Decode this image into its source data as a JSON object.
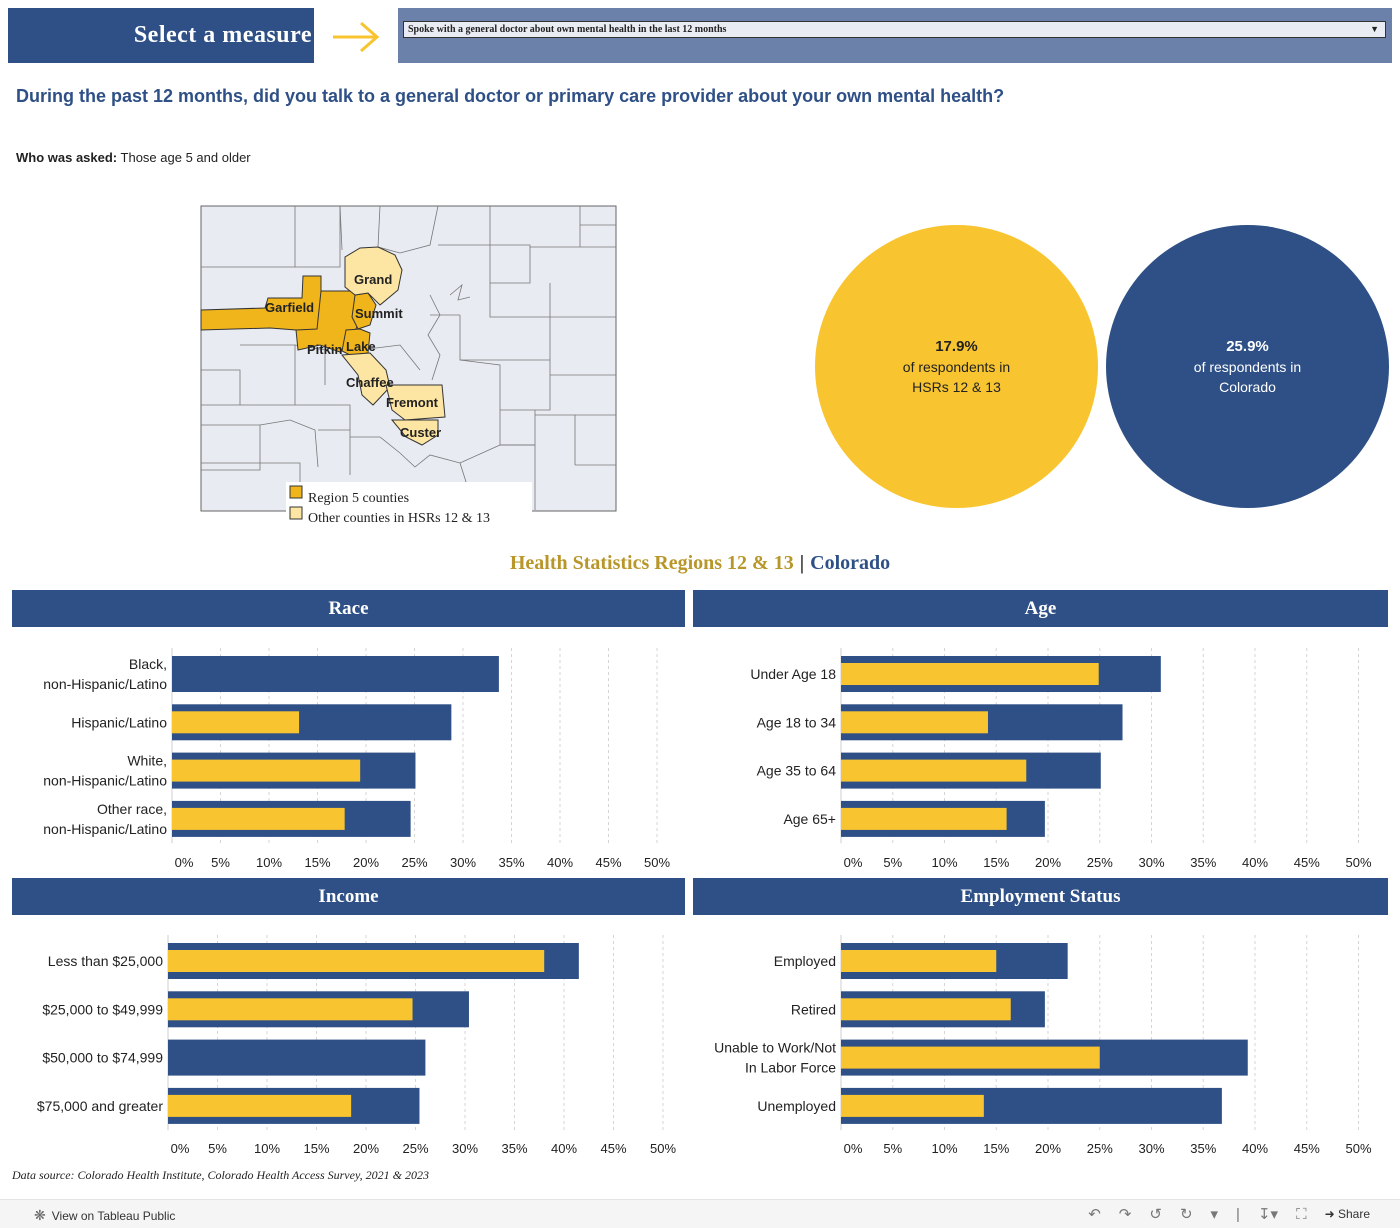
{
  "header": {
    "measure_label": "Select a measure",
    "selected_measure": "Spoke with a general doctor about own mental health in the last 12 months"
  },
  "question": "During the past 12 months, did you talk to a general doctor or primary care provider about your own mental health?",
  "who_asked": {
    "label": "Who was asked:",
    "value": "Those age 5 and older"
  },
  "map": {
    "county_labels": [
      "Grand",
      "Garfield",
      "Summit",
      "Pitkin",
      "Lake",
      "Chaffee",
      "Fremont",
      "Custer"
    ],
    "legend": [
      "Region 5 counties",
      "Other counties in HSRs 12 & 13"
    ]
  },
  "summary": {
    "region": {
      "value": "17.9%",
      "line1": "of respondents in",
      "line2": "HSRs 12 & 13"
    },
    "colorado": {
      "value": "25.9%",
      "line1": "of respondents in",
      "line2": "Colorado"
    }
  },
  "legend_title": {
    "region": "Health Statistics Regions 12 & 13",
    "separator": "|",
    "state": "Colorado"
  },
  "colors": {
    "navy": "#2e5086",
    "gold": "#f8c530",
    "gold_text": "#b8962a"
  },
  "chart_data": [
    {
      "type": "bar",
      "title": "Race",
      "categories": [
        [
          "Black,",
          "non-Hispanic/Latino"
        ],
        [
          "Hispanic/Latino"
        ],
        [
          "White,",
          "non-Hispanic/Latino"
        ],
        [
          "Other race,",
          "non-Hispanic/Latino"
        ]
      ],
      "series": [
        {
          "name": "Colorado",
          "values": [
            33.7,
            28.8,
            25.1,
            24.6
          ]
        },
        {
          "name": "Health Statistics Regions 12 & 13",
          "values": [
            null,
            13.1,
            19.4,
            17.8
          ]
        }
      ],
      "ticks": [
        "0%",
        "5%",
        "10%",
        "15%",
        "20%",
        "25%",
        "30%",
        "35%",
        "40%",
        "45%",
        "50%"
      ],
      "xlim": [
        0,
        50
      ]
    },
    {
      "type": "bar",
      "title": "Age",
      "categories": [
        [
          "Under Age 18"
        ],
        [
          "Age 18 to 34"
        ],
        [
          "Age 35 to 64"
        ],
        [
          "Age 65+"
        ]
      ],
      "series": [
        {
          "name": "Colorado",
          "values": [
            30.9,
            27.2,
            25.1,
            19.7
          ]
        },
        {
          "name": "Health Statistics Regions 12 & 13",
          "values": [
            24.9,
            14.2,
            17.9,
            16.0
          ]
        }
      ],
      "ticks": [
        "0%",
        "5%",
        "10%",
        "15%",
        "20%",
        "25%",
        "30%",
        "35%",
        "40%",
        "45%",
        "50%"
      ],
      "xlim": [
        0,
        50
      ]
    },
    {
      "type": "bar",
      "title": "Income",
      "categories": [
        [
          "Less than $25,000"
        ],
        [
          "$25,000 to $49,999"
        ],
        [
          "$50,000 to $74,999"
        ],
        [
          "$75,000 and greater"
        ]
      ],
      "series": [
        {
          "name": "Colorado",
          "values": [
            41.5,
            30.4,
            26.0,
            25.4
          ]
        },
        {
          "name": "Health Statistics Regions 12 & 13",
          "values": [
            38.0,
            24.7,
            null,
            18.5
          ]
        }
      ],
      "ticks": [
        "0%",
        "5%",
        "10%",
        "15%",
        "20%",
        "25%",
        "30%",
        "35%",
        "40%",
        "45%",
        "50%"
      ],
      "xlim": [
        0,
        50
      ]
    },
    {
      "type": "bar",
      "title": "Employment Status",
      "categories": [
        [
          "Employed"
        ],
        [
          "Retired"
        ],
        [
          "Unable to Work/Not",
          "In Labor Force"
        ],
        [
          "Unemployed"
        ]
      ],
      "series": [
        {
          "name": "Colorado",
          "values": [
            21.9,
            19.7,
            39.3,
            36.8
          ]
        },
        {
          "name": "Health Statistics Regions 12 & 13",
          "values": [
            15.0,
            16.4,
            25.0,
            13.8
          ]
        }
      ],
      "ticks": [
        "0%",
        "5%",
        "10%",
        "15%",
        "20%",
        "25%",
        "30%",
        "35%",
        "40%",
        "45%",
        "50%"
      ],
      "xlim": [
        0,
        50
      ]
    }
  ],
  "data_source": "Data source: Colorado Health Institute, Colorado Health Access Survey, 2021 & 2023",
  "footer": {
    "view_link": "View on Tableau Public",
    "share": "Share"
  }
}
